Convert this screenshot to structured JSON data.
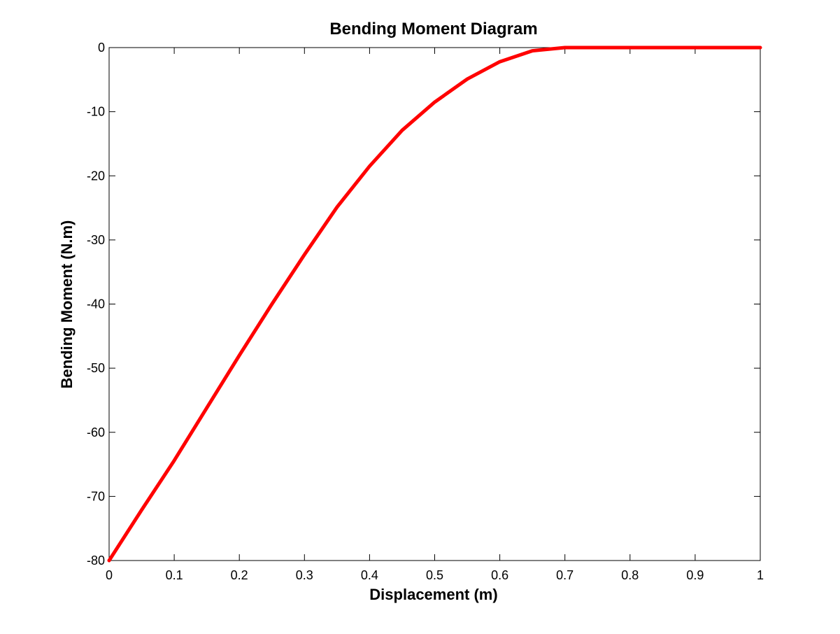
{
  "chart_data": {
    "type": "line",
    "title": "Bending Moment Diagram",
    "xlabel": "Displacement (m)",
    "ylabel": "Bending Moment (N.m)",
    "xlim": [
      0,
      1
    ],
    "ylim": [
      -80,
      0
    ],
    "xticks": [
      0,
      0.1,
      0.2,
      0.3,
      0.4,
      0.5,
      0.6,
      0.7,
      0.8,
      0.9,
      1
    ],
    "xtick_labels": [
      "0",
      "0.1",
      "0.2",
      "0.3",
      "0.4",
      "0.5",
      "0.6",
      "0.7",
      "0.8",
      "0.9",
      "1"
    ],
    "yticks": [
      -80,
      -70,
      -60,
      -50,
      -40,
      -30,
      -20,
      -10,
      0
    ],
    "ytick_labels": [
      "-80",
      "-70",
      "-60",
      "-50",
      "-40",
      "-30",
      "-20",
      "-10",
      "0"
    ],
    "grid": false,
    "colors": {
      "series": "#ff0000",
      "axes": "#000000",
      "background": "#ffffff"
    },
    "series": [
      {
        "x": [
          0,
          0.05,
          0.1,
          0.15,
          0.2,
          0.25,
          0.3,
          0.35,
          0.4,
          0.45,
          0.5,
          0.55,
          0.6,
          0.65,
          0.7,
          0.75,
          0.8,
          0.85,
          0.9,
          0.95,
          1
        ],
        "y": [
          -80,
          -72.1,
          -64.4,
          -56.2,
          -48.0,
          -40.0,
          -32.3,
          -24.9,
          -18.5,
          -12.9,
          -8.5,
          -4.9,
          -2.2,
          -0.5,
          0,
          0,
          0,
          0,
          0,
          0,
          0
        ]
      }
    ]
  }
}
